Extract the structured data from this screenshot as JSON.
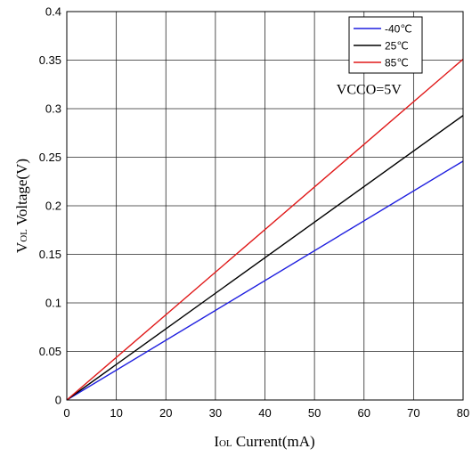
{
  "chart_data": {
    "type": "line",
    "xlabel": {
      "main": "I",
      "sub": "OL",
      "rest": " Current(mA)"
    },
    "ylabel": {
      "main": "V",
      "sub": "OL",
      "rest": " Voltage(V)"
    },
    "xlim": [
      0,
      80
    ],
    "ylim": [
      0,
      0.4
    ],
    "xticks": [
      0,
      10,
      20,
      30,
      40,
      50,
      60,
      70,
      80
    ],
    "yticks": [
      0,
      0.05,
      0.1,
      0.15,
      0.2,
      0.25,
      0.3,
      0.35,
      0.4
    ],
    "grid": true,
    "legend_position": "top-right",
    "series": [
      {
        "name": "-40℃",
        "color": "#1f1fdf",
        "x": [
          0,
          80
        ],
        "y": [
          0,
          0.246
        ]
      },
      {
        "name": "25℃",
        "color": "#000000",
        "x": [
          0,
          80
        ],
        "y": [
          0,
          0.293
        ]
      },
      {
        "name": "85℃",
        "color": "#e01818",
        "x": [
          0,
          80
        ],
        "y": [
          0,
          0.351
        ]
      }
    ],
    "annotations": [
      {
        "text": "VCCO=5V",
        "x": 61,
        "y": 0.315
      }
    ]
  }
}
